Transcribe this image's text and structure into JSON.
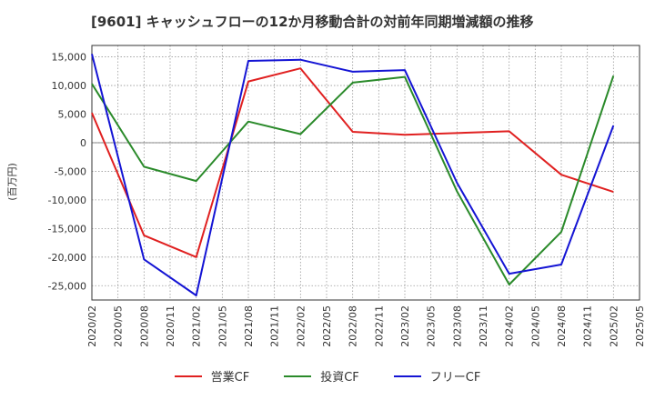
{
  "title": "[9601]  キャッシュフローの12か月移動合計の対前年同期増減額の推移",
  "chart_data": {
    "type": "line",
    "ylabel": "(百万円)",
    "x": [
      "2020/02",
      "2020/05",
      "2020/08",
      "2020/11",
      "2021/02",
      "2021/05",
      "2021/08",
      "2021/11",
      "2022/02",
      "2022/05",
      "2022/08",
      "2022/11",
      "2023/02",
      "2023/05",
      "2023/08",
      "2023/11",
      "2024/02",
      "2024/05",
      "2024/08",
      "2024/11",
      "2025/02",
      "2025/05"
    ],
    "ylim": [
      -27500,
      17000
    ],
    "yticks": [
      15000,
      10000,
      5000,
      0,
      -5000,
      -10000,
      -15000,
      -20000,
      -25000
    ],
    "ytick_labels": [
      "15,000",
      "10,000",
      "5,000",
      "0",
      "-5,000",
      "-10,000",
      "-15,000",
      "-20,000",
      "-25,000"
    ],
    "grid": true,
    "legend_position": "bottom",
    "series": [
      {
        "name": "営業CF",
        "color": "#e02020",
        "values": [
          5200,
          null,
          -16200,
          null,
          -20000,
          null,
          10700,
          null,
          13000,
          null,
          1900,
          null,
          1400,
          null,
          null,
          null,
          2000,
          null,
          -5600,
          null,
          -8600,
          null
        ]
      },
      {
        "name": "投資CF",
        "color": "#2a8a2a",
        "values": [
          10300,
          null,
          -4200,
          null,
          -6700,
          null,
          3700,
          null,
          1500,
          null,
          10500,
          null,
          11500,
          null,
          -8500,
          null,
          -24800,
          null,
          -15600,
          null,
          11700,
          null
        ]
      },
      {
        "name": "フリーCF",
        "color": "#1414d4",
        "values": [
          15500,
          null,
          -20400,
          null,
          -26700,
          null,
          14300,
          null,
          14500,
          null,
          12400,
          null,
          12700,
          null,
          -7000,
          null,
          -22900,
          null,
          -21300,
          null,
          3000,
          null
        ]
      }
    ]
  }
}
